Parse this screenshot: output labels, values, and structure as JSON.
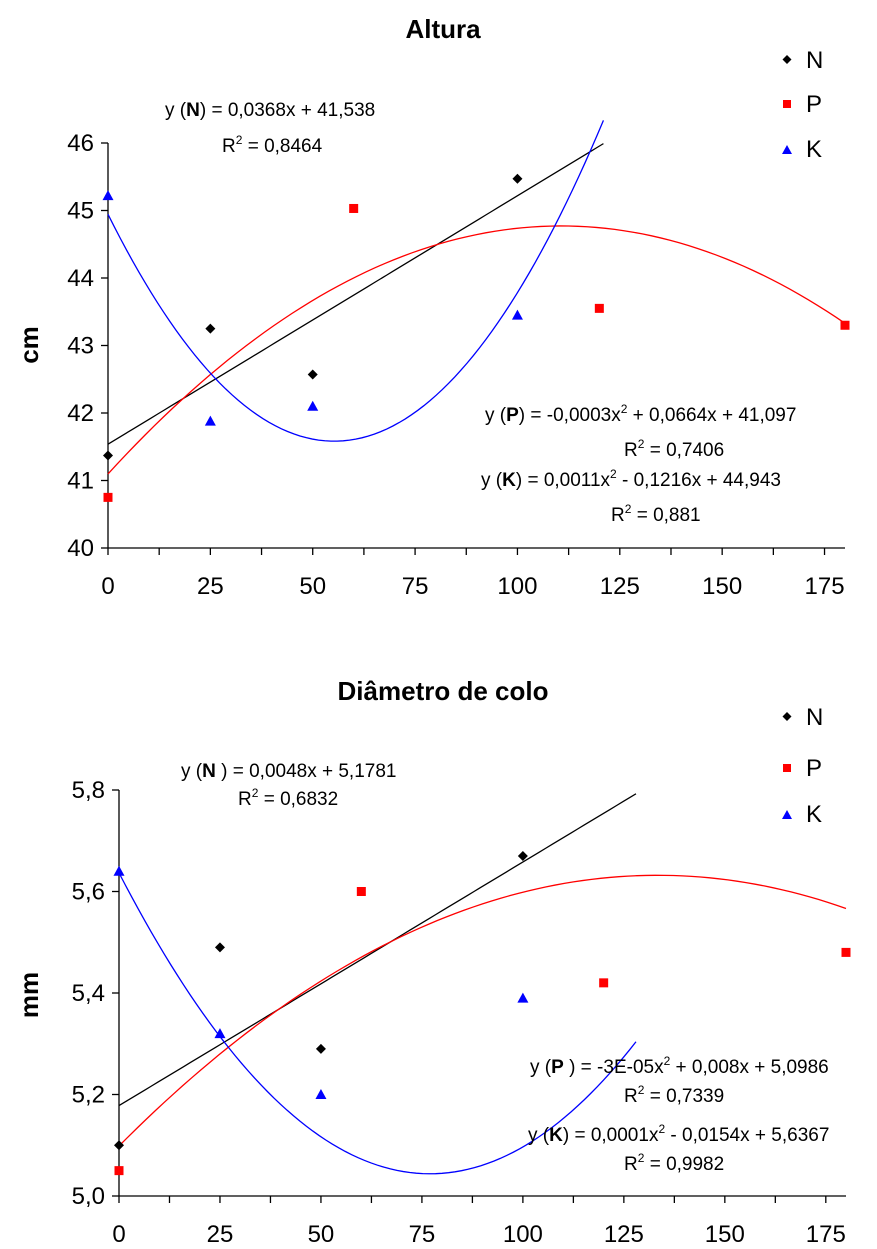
{
  "chart_data": [
    {
      "type": "scatter",
      "title": "Altura",
      "xlabel": "",
      "ylabel": "cm",
      "xlim": [
        0,
        180
      ],
      "ylim": [
        40,
        46
      ],
      "xticks": [
        "0",
        "25",
        "50",
        "75",
        "100",
        "125",
        "150",
        "175"
      ],
      "yticks": [
        "40",
        "41",
        "42",
        "43",
        "44",
        "45",
        "46"
      ],
      "legend_position": "top-right",
      "series": [
        {
          "name": "N",
          "color": "#000000",
          "marker": "diamond",
          "points": [
            [
              0,
              41.37
            ],
            [
              25,
              43.25
            ],
            [
              50,
              42.57
            ],
            [
              100,
              45.47
            ]
          ],
          "trend": {
            "kind": "linear",
            "coef": [
              41.538,
              0.0368
            ],
            "xrange": [
              0,
              121
            ]
          }
        },
        {
          "name": "P",
          "color": "#ff0000",
          "marker": "square",
          "points": [
            [
              0,
              40.75
            ],
            [
              60,
              45.03
            ],
            [
              120,
              43.55
            ],
            [
              180,
              43.3
            ]
          ],
          "trend": {
            "kind": "poly2",
            "coef": [
              41.097,
              0.0664,
              -0.0003
            ],
            "xrange": [
              0,
              180
            ]
          }
        },
        {
          "name": "K",
          "color": "#0000ff",
          "marker": "triangle",
          "points": [
            [
              0,
              45.22
            ],
            [
              25,
              41.88
            ],
            [
              50,
              42.1
            ],
            [
              100,
              43.45
            ]
          ],
          "trend": {
            "kind": "poly2",
            "coef": [
              44.943,
              -0.1216,
              0.0011
            ],
            "xrange": [
              0,
              121
            ]
          }
        }
      ],
      "equations": [
        {
          "prefix": "y (",
          "bold": "N",
          "suffix": ") = 0,0368x + 41,538",
          "r2": "R",
          "r2_value": " = 0,8464"
        },
        {
          "prefix": "y (",
          "bold": "P",
          "suffix": ") = -0,0003x",
          "sq": "2",
          "suffix2": " + 0,0664x + 41,097",
          "r2": "R",
          "r2_value": " = 0,7406"
        },
        {
          "prefix": "y (",
          "bold": "K",
          "suffix": ") = 0,0011x",
          "sq": "2",
          "suffix2": " - 0,1216x + 44,943",
          "r2": "R",
          "r2_value": " = 0,881"
        }
      ]
    },
    {
      "type": "scatter",
      "title": "Diâmetro de colo",
      "xlabel": "",
      "ylabel": "mm",
      "xlim": [
        0,
        180
      ],
      "ylim": [
        5.0,
        5.8
      ],
      "xticks": [
        "0",
        "25",
        "50",
        "75",
        "100",
        "125",
        "150",
        "175"
      ],
      "yticks": [
        "5,0",
        "5,2",
        "5,4",
        "5,6",
        "5,8"
      ],
      "legend_position": "top-right",
      "series": [
        {
          "name": "N",
          "color": "#000000",
          "marker": "diamond",
          "points": [
            [
              0,
              5.1
            ],
            [
              25,
              5.49
            ],
            [
              50,
              5.29
            ],
            [
              100,
              5.67
            ]
          ],
          "trend": {
            "kind": "linear",
            "coef": [
              5.1781,
              0.0048
            ],
            "xrange": [
              0,
              128
            ]
          }
        },
        {
          "name": "P",
          "color": "#ff0000",
          "marker": "square",
          "points": [
            [
              0,
              5.05
            ],
            [
              60,
              5.6
            ],
            [
              120,
              5.42
            ],
            [
              180,
              5.48
            ]
          ],
          "trend": {
            "kind": "poly2",
            "coef": [
              5.0986,
              0.008,
              -3e-05
            ],
            "xrange": [
              0,
              180
            ]
          }
        },
        {
          "name": "K",
          "color": "#0000ff",
          "marker": "triangle",
          "points": [
            [
              0,
              5.64
            ],
            [
              25,
              5.32
            ],
            [
              50,
              5.2
            ],
            [
              100,
              5.39
            ]
          ],
          "trend": {
            "kind": "poly2",
            "coef": [
              5.6367,
              -0.0154,
              0.0001
            ],
            "xrange": [
              0,
              128
            ]
          }
        }
      ],
      "equations": [
        {
          "prefix": "y (",
          "bold": "N",
          "suffix": " ) = 0,0048x + 5,1781",
          "r2": "R",
          "r2_value": " = 0,6832"
        },
        {
          "prefix": "y (",
          "bold": "P",
          "suffix": " ) = -3E-05x",
          "sq": "2",
          "suffix2": " + 0,008x + 5,0986",
          "r2": "R",
          "r2_value": " = 0,7339"
        },
        {
          "prefix": "y (",
          "bold": "K",
          "suffix": ") = 0,0001x",
          "sq": "2",
          "suffix2": " - 0,0154x + 5,6367",
          "r2": "R",
          "r2_value": " = 0,9982"
        }
      ]
    }
  ]
}
